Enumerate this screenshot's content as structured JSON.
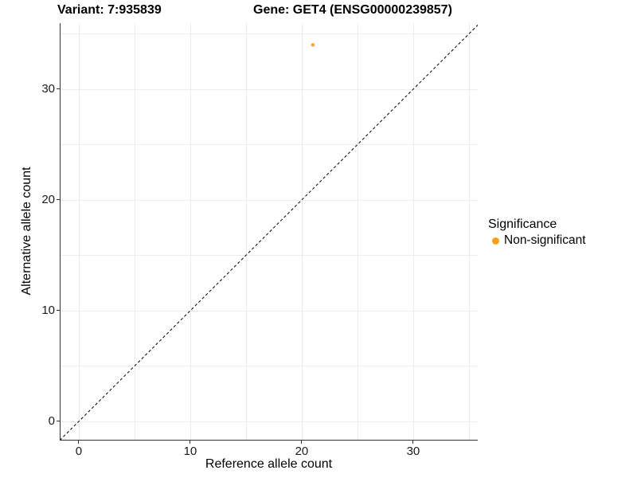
{
  "titles": {
    "variant": "Variant: 7:935839",
    "gene": "Gene: GET4 (ENSG00000239857)"
  },
  "chart_data": {
    "type": "scatter",
    "xlabel": "Reference allele count",
    "ylabel": "Alternative allele count",
    "x_ticks": [
      0,
      10,
      20,
      30
    ],
    "y_ticks": [
      0,
      10,
      20,
      30
    ],
    "xlim": [
      -1.71,
      35.79
    ],
    "ylim": [
      -1.73,
      35.97
    ],
    "grid_interval": 5,
    "grid_max": 35,
    "grid": "on",
    "points": [
      {
        "x": 21,
        "y": 34,
        "series": "Non-significant"
      }
    ],
    "reference_line": {
      "equation": "y = x",
      "style": "dashed",
      "color": "#000000"
    },
    "legend": {
      "title": "Significance",
      "position": "right",
      "items": [
        {
          "label": "Non-significant",
          "color": "#FA9E1B"
        }
      ]
    }
  },
  "colors": {
    "background": "#FFFFFF",
    "point": "#FAA43C",
    "legend_dot": "#FA9E1B",
    "axis_line": "#333333",
    "gridline": "#ECECEC",
    "text": "#000000"
  }
}
